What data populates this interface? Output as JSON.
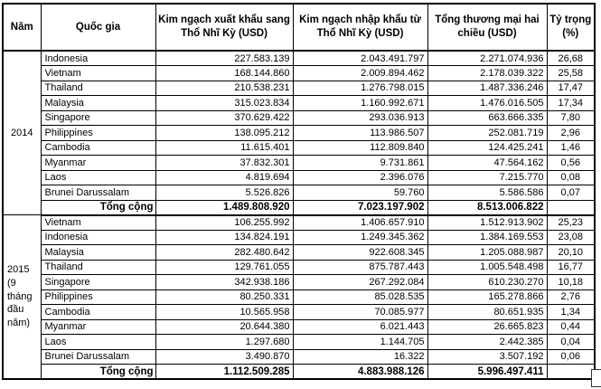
{
  "table": {
    "headers": [
      "Năm",
      "Quốc gia",
      "Kim ngạch xuất khẩu sang Thổ Nhĩ Kỳ  (USD)",
      "Kim ngạch nhập khẩu từ Thổ Nhĩ Kỳ  (USD)",
      "Tổng thương mại hai chiều  (USD)",
      "Tỷ trọng (%)"
    ],
    "groups": [
      {
        "year": "2014",
        "year_lines": [
          "2014"
        ],
        "rows": [
          [
            "Indonesia",
            "227.583.139",
            "2.043.491.797",
            "2.271.074.936",
            "26,68"
          ],
          [
            "Vietnam",
            "168.144.860",
            "2.009.894.462",
            "2.178.039.322",
            "25,58"
          ],
          [
            "Thailand",
            "210.538.231",
            "1.276.798.015",
            "1.487.336.246",
            "17,47"
          ],
          [
            "Malaysia",
            "315.023.834",
            "1.160.992.671",
            "1.476.016.505",
            "17,34"
          ],
          [
            "Singapore",
            "370.629.422",
            "293.036.913",
            "663.666.335",
            "7,80"
          ],
          [
            "Philippines",
            "138.095.212",
            "113.986.507",
            "252.081.719",
            "2,96"
          ],
          [
            "Cambodia",
            "11.615.401",
            "112.809.840",
            "124.425.241",
            "1,46"
          ],
          [
            "Myanmar",
            "37.832.301",
            "9.731.861",
            "47.564.162",
            "0,56"
          ],
          [
            "Laos",
            "4.819.694",
            "2.396.076",
            "7.215.770",
            "0,08"
          ],
          [
            "Brunei Darussalam",
            "5.526.826",
            "59.760",
            "5.586.586",
            "0,07"
          ]
        ],
        "total": {
          "label": "Tổng cộng",
          "export": "1.489.808.920",
          "import": "7.023.197.902",
          "total": "8.513.006.822",
          "share": ""
        }
      },
      {
        "year": "2015 (9 tháng đầu năm)",
        "year_lines": [
          "2015",
          "(9",
          "tháng",
          "đầu",
          "năm)"
        ],
        "rows": [
          [
            "Vietnam",
            "106.255.992",
            "1.406.657.910",
            "1.512.913.902",
            "25,23"
          ],
          [
            "Indonesia",
            "134.824.191",
            "1.249.345.362",
            "1.384.169.553",
            "23,08"
          ],
          [
            "Malaysia",
            "282.480.642",
            "922.608.345",
            "1.205.088.987",
            "20,10"
          ],
          [
            "Thailand",
            "129.761.055",
            "875.787.443",
            "1.005.548.498",
            "16,77"
          ],
          [
            "Singapore",
            "342.938.186",
            "267.292.084",
            "610.230.270",
            "10,18"
          ],
          [
            "Philippines",
            "80.250.331",
            "85.028.535",
            "165.278.866",
            "2,76"
          ],
          [
            "Cambodia",
            "10.565.958",
            "70.085.977",
            "80.651.935",
            "1,34"
          ],
          [
            "Myanmar",
            "20.644.380",
            "6.021.443",
            "26.665.823",
            "0,44"
          ],
          [
            "Laos",
            "1.297.680",
            "1.144.705",
            "2.442.385",
            "0,04"
          ],
          [
            "Brunei Darussalam",
            "3.490.870",
            "16.322",
            "3.507.192",
            "0,06"
          ]
        ],
        "total": {
          "label": "Tổng cộng",
          "export": "1.112.509.285",
          "import": "4.883.988.126",
          "total": "5.996.497.411",
          "share": ""
        }
      }
    ]
  }
}
